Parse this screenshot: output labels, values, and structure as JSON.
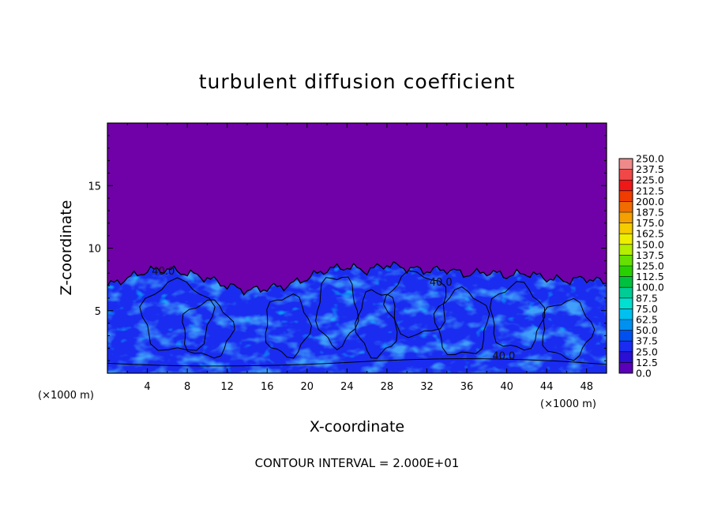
{
  "chart_data": {
    "type": "heatmap",
    "title": "turbulent diffusion coefficient",
    "xlabel": "X-coordinate",
    "ylabel": "Z-coordinate",
    "x_unit_left": "(×1000 m)",
    "x_unit_right": "(×1000 m)",
    "xlim": [
      0,
      50
    ],
    "ylim": [
      0,
      20
    ],
    "x_ticks": [
      4,
      8,
      12,
      16,
      20,
      24,
      28,
      32,
      36,
      40,
      44,
      48
    ],
    "y_ticks": [
      5,
      10,
      15
    ],
    "footer": "CONTOUR INTERVAL = 2.000E+01",
    "colorbar": {
      "levels": [
        "250.0",
        "237.5",
        "225.0",
        "212.5",
        "200.0",
        "187.5",
        "175.0",
        "162.5",
        "150.0",
        "137.5",
        "125.0",
        "112.5",
        "100.0",
        "87.5",
        "75.0",
        "62.5",
        "50.0",
        "37.5",
        "25.0",
        "12.5",
        "0.0"
      ],
      "colors": [
        "#f08a8a",
        "#f04848",
        "#ee1818",
        "#f03c00",
        "#f06c00",
        "#f4a000",
        "#f4cc00",
        "#eeee00",
        "#b4ee00",
        "#66e000",
        "#28d000",
        "#00c040",
        "#00cc96",
        "#00e0d0",
        "#00c0f0",
        "#0090f0",
        "#0050f0",
        "#1a2cf0",
        "#2a10d4",
        "#5a00b8"
      ],
      "base_color": "#7000a8"
    },
    "contour_labels": [
      {
        "text": "40.0",
        "x": 5.6,
        "z": 7.9
      },
      {
        "text": "40.0",
        "x": 33.4,
        "z": 7.0
      },
      {
        "text": "40.0",
        "x": 39.7,
        "z": 1.1
      }
    ],
    "turbulent_layer": {
      "description_top_km": [
        [
          0,
          7.0
        ],
        [
          2,
          7.6
        ],
        [
          4,
          8.2
        ],
        [
          6,
          8.3
        ],
        [
          8,
          8.0
        ],
        [
          10,
          7.6
        ],
        [
          12,
          7.0
        ],
        [
          14,
          6.6
        ],
        [
          16,
          6.8
        ],
        [
          18,
          7.0
        ],
        [
          20,
          7.6
        ],
        [
          22,
          8.3
        ],
        [
          24,
          8.5
        ],
        [
          26,
          8.2
        ],
        [
          28,
          8.7
        ],
        [
          30,
          8.4
        ],
        [
          32,
          8.2
        ],
        [
          34,
          8.3
        ],
        [
          36,
          7.9
        ],
        [
          38,
          8.1
        ],
        [
          40,
          7.8
        ],
        [
          42,
          8.0
        ],
        [
          44,
          7.6
        ],
        [
          46,
          7.4
        ],
        [
          48,
          7.6
        ],
        [
          50,
          7.2
        ]
      ]
    }
  }
}
